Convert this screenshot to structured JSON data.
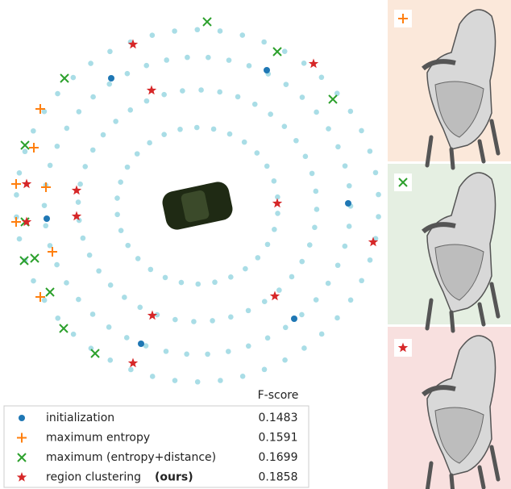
{
  "legend": {
    "header": "F-score",
    "rows": [
      {
        "label": "initialization",
        "score": 0.1483
      },
      {
        "label": "maximum entropy",
        "score": 0.1591
      },
      {
        "label": "maximum (entropy+distance)",
        "score": 0.1699
      },
      {
        "label": "region clustering",
        "emphasis": "(ours)",
        "score": 0.1858
      }
    ]
  }
}
